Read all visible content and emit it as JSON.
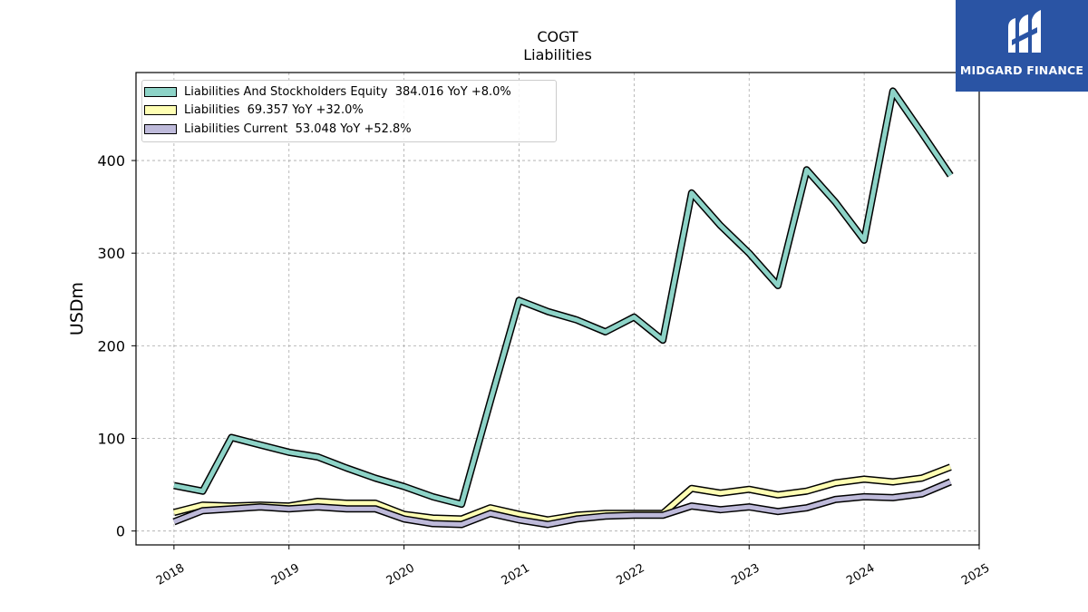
{
  "chart_data": {
    "type": "line",
    "title": "COGT",
    "subtitle": "Liabilities",
    "xlabel": "",
    "ylabel": "USDm",
    "xlim": [
      2017.67,
      2025.0
    ],
    "ylim": [
      -15,
      495
    ],
    "x_ticks": [
      2018,
      2019,
      2020,
      2021,
      2022,
      2023,
      2024,
      2025
    ],
    "x_tick_labels": [
      "2018",
      "2019",
      "2020",
      "2021",
      "2022",
      "2023",
      "2024",
      "2025"
    ],
    "y_ticks": [
      0,
      100,
      200,
      300,
      400
    ],
    "y_tick_labels": [
      "0",
      "100",
      "200",
      "300",
      "400"
    ],
    "grid": true,
    "legend_position": "top-left",
    "x": [
      2018.0,
      2018.25,
      2018.5,
      2018.75,
      2019.0,
      2019.25,
      2019.5,
      2019.75,
      2020.0,
      2020.25,
      2020.5,
      2020.75,
      2021.0,
      2021.25,
      2021.5,
      2021.75,
      2022.0,
      2022.25,
      2022.5,
      2022.75,
      2023.0,
      2023.25,
      2023.5,
      2023.75,
      2024.0,
      2024.25,
      2024.5,
      2024.75
    ],
    "series": [
      {
        "name": "Liabilities And Stockholders Equity",
        "legend_label": "Liabilities And Stockholders Equity  384.016 YoY +8.0%",
        "color": "#8dd3c7",
        "values": [
          49,
          43,
          101,
          93,
          85,
          80,
          68,
          57,
          48,
          37,
          29,
          140,
          249,
          237,
          228,
          215,
          231,
          206,
          365,
          330,
          300,
          265,
          390,
          355,
          314,
          475,
          430,
          384
        ]
      },
      {
        "name": "Liabilities",
        "legend_label": "Liabilities  69.357 YoY +32.0%",
        "color": "#ffffb3",
        "values": [
          20,
          28,
          27,
          28,
          27,
          32,
          30,
          30,
          18,
          14,
          13,
          25,
          18,
          12,
          17,
          19,
          19,
          19,
          46,
          41,
          45,
          39,
          43,
          52,
          56,
          53,
          57,
          69
        ]
      },
      {
        "name": "Liabilities Current",
        "legend_label": "Liabilities Current  53.048 YoY +52.8%",
        "color": "#bebada",
        "values": [
          10,
          22,
          24,
          26,
          24,
          26,
          24,
          24,
          13,
          8,
          7,
          19,
          12,
          7,
          13,
          16,
          17,
          17,
          27,
          23,
          26,
          21,
          25,
          34,
          37,
          36,
          40,
          53
        ]
      }
    ]
  },
  "logo": {
    "text": "MIDGARD FINANCE",
    "background": "#2a54a4"
  }
}
